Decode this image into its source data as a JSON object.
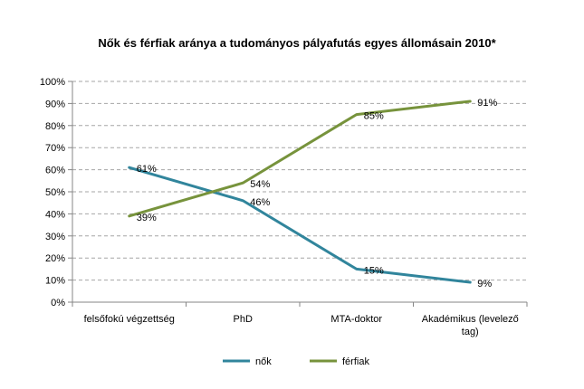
{
  "chart_data": {
    "type": "line",
    "title": "Nők és férfiak aránya a tudományos pályafutás egyes állomásain 2010*",
    "xlabel": "",
    "ylabel": "",
    "categories": [
      [
        "felsőfokú végzettség"
      ],
      [
        "PhD"
      ],
      [
        "MTA-doktor"
      ],
      [
        "Akadémikus (levelező",
        "tag)"
      ]
    ],
    "ylim": [
      0,
      100
    ],
    "y_ticks": [
      "0%",
      "10%",
      "20%",
      "30%",
      "40%",
      "50%",
      "60%",
      "70%",
      "80%",
      "90%",
      "100%"
    ],
    "grid": true,
    "legend_position": "bottom",
    "series": [
      {
        "name": "nők",
        "color": "#31859C",
        "values": [
          61,
          46,
          15,
          9
        ],
        "labels": [
          "61%",
          "46%",
          "15%",
          "9%"
        ]
      },
      {
        "name": "férfiak",
        "color": "#77933C",
        "values": [
          39,
          54,
          85,
          91
        ],
        "labels": [
          "39%",
          "54%",
          "85%",
          "91%"
        ]
      }
    ]
  }
}
